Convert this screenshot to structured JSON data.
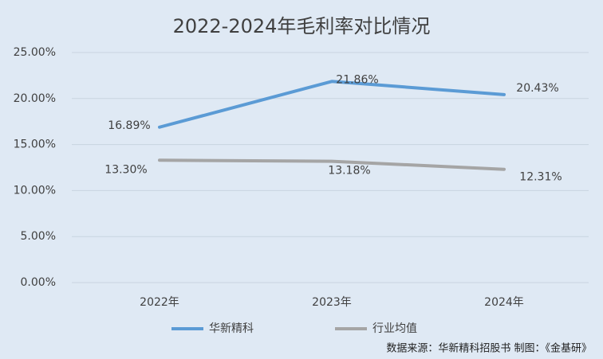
{
  "chart_data": {
    "type": "line",
    "title": "2022-2024年毛利率对比情况",
    "categories": [
      "2022年",
      "2023年",
      "2024年"
    ],
    "series": [
      {
        "name": "华新精科",
        "color": "#5b9bd5",
        "values": [
          16.89,
          21.86,
          20.43
        ],
        "value_labels": [
          "16.89%",
          "21.86%",
          "20.43%"
        ]
      },
      {
        "name": "行业均值",
        "color": "#a5a5a5",
        "values": [
          13.3,
          13.18,
          12.31
        ],
        "value_labels": [
          "13.30%",
          "13.18%",
          "12.31%"
        ]
      }
    ],
    "ylim": [
      0,
      25
    ],
    "yticks": [
      {
        "value": 0,
        "label": "0.00%"
      },
      {
        "value": 5,
        "label": "5.00%"
      },
      {
        "value": 10,
        "label": "10.00%"
      },
      {
        "value": 15,
        "label": "15.00%"
      },
      {
        "value": 20,
        "label": "20.00%"
      },
      {
        "value": 25,
        "label": "25.00%"
      }
    ],
    "grid": true,
    "legend": "bottom",
    "source": "数据来源：华新精科招股书   制图：《金基研》"
  }
}
